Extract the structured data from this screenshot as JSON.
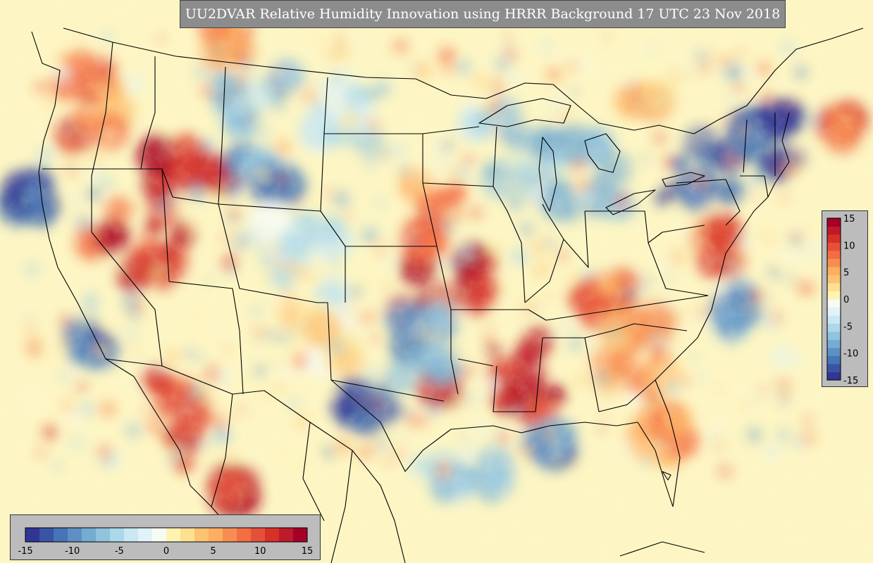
{
  "title": "UU2DVAR Relative Humidity Innovation using HRRR Background 17 UTC 23 Nov 2018",
  "colorbar": {
    "min": -15,
    "max": 15,
    "tick_labels": [
      "-15",
      "-10",
      "-5",
      "0",
      "5",
      "10",
      "15"
    ],
    "colors": [
      "#313695",
      "#3a54a4",
      "#4575b4",
      "#5e8fc3",
      "#74add1",
      "#91c3df",
      "#abd9e9",
      "#c9e8f2",
      "#e0f3f8",
      "#f7fbf2",
      "#fff3b0",
      "#fee090",
      "#fdc272",
      "#fdae61",
      "#f88d52",
      "#f46d43",
      "#e4513a",
      "#d73027",
      "#be1a2a",
      "#a50026"
    ]
  },
  "colors": {
    "background": "#fdf6c4",
    "state_lines": "#000000"
  }
}
